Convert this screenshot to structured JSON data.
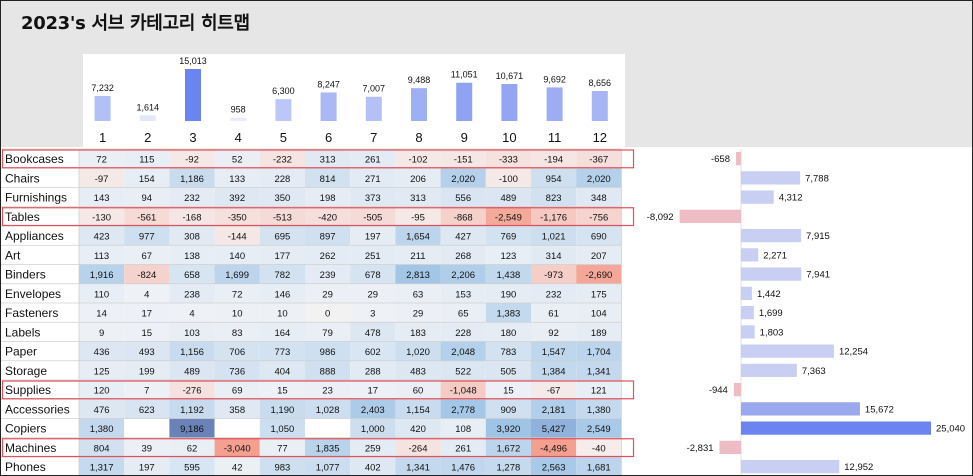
{
  "title": "2023's 서브 카테고리 히트맵",
  "colors": {
    "positive_strong": "#6b84f0",
    "positive_light": "#cdd6f8",
    "negative_strong": "#f07070",
    "heat_positive": "#9fc4e6",
    "heat_negative": "#f4a090",
    "total_positive": "#c9cff2",
    "total_negative": "#eebcc4",
    "highlight_border": "#e0505a"
  },
  "chart_data": {
    "type": "heatmap",
    "months": [
      "1",
      "2",
      "3",
      "4",
      "5",
      "6",
      "7",
      "8",
      "9",
      "10",
      "11",
      "12"
    ],
    "monthly_totals": [
      7232,
      1614,
      15013,
      958,
      6300,
      8247,
      7007,
      9488,
      11051,
      10671,
      9692,
      8656
    ],
    "monthly_labels": [
      "7,232",
      "1,614",
      "15,013",
      "958",
      "6,300",
      "8,247",
      "7,007",
      "9,488",
      "11,051",
      "10,671",
      "9,692",
      "8,656"
    ],
    "rows": [
      {
        "name": "Bookcases",
        "values": [
          72,
          115,
          -92,
          52,
          -232,
          313,
          261,
          -102,
          -151,
          -333,
          -194,
          -367
        ],
        "labels": [
          "72",
          "115",
          "-92",
          "52",
          "-232",
          "313",
          "261",
          "-102",
          "-151",
          "-333",
          "-194",
          "-367"
        ],
        "total": -658,
        "total_label": "-658",
        "highlight": true
      },
      {
        "name": "Chairs",
        "values": [
          -97,
          154,
          1186,
          133,
          228,
          814,
          271,
          206,
          2020,
          -100,
          954,
          2020
        ],
        "labels": [
          "-97",
          "154",
          "1,186",
          "133",
          "228",
          "814",
          "271",
          "206",
          "2,020",
          "-100",
          "954",
          "2,020"
        ],
        "total": 7788,
        "total_label": "7,788",
        "highlight": false
      },
      {
        "name": "Furnishings",
        "values": [
          143,
          94,
          232,
          392,
          350,
          198,
          373,
          313,
          556,
          489,
          823,
          348
        ],
        "labels": [
          "143",
          "94",
          "232",
          "392",
          "350",
          "198",
          "373",
          "313",
          "556",
          "489",
          "823",
          "348"
        ],
        "total": 4312,
        "total_label": "4,312",
        "highlight": false
      },
      {
        "name": "Tables",
        "values": [
          -130,
          -561,
          -168,
          -350,
          -513,
          -420,
          -505,
          -95,
          -868,
          -2549,
          -1176,
          -756
        ],
        "labels": [
          "-130",
          "-561",
          "-168",
          "-350",
          "-513",
          "-420",
          "-505",
          "-95",
          "-868",
          "-2,549",
          "-1,176",
          "-756"
        ],
        "total": -8092,
        "total_label": "-8,092",
        "highlight": true
      },
      {
        "name": "Appliances",
        "values": [
          423,
          977,
          308,
          -144,
          695,
          897,
          197,
          1654,
          427,
          769,
          1021,
          690
        ],
        "labels": [
          "423",
          "977",
          "308",
          "-144",
          "695",
          "897",
          "197",
          "1,654",
          "427",
          "769",
          "1,021",
          "690"
        ],
        "total": 7915,
        "total_label": "7,915",
        "highlight": false
      },
      {
        "name": "Art",
        "values": [
          113,
          67,
          138,
          140,
          177,
          262,
          251,
          211,
          268,
          123,
          314,
          207
        ],
        "labels": [
          "113",
          "67",
          "138",
          "140",
          "177",
          "262",
          "251",
          "211",
          "268",
          "123",
          "314",
          "207"
        ],
        "total": 2271,
        "total_label": "2,271",
        "highlight": false
      },
      {
        "name": "Binders",
        "values": [
          1916,
          -824,
          658,
          1699,
          782,
          239,
          678,
          2813,
          2206,
          1438,
          -973,
          -2690
        ],
        "labels": [
          "1,916",
          "-824",
          "658",
          "1,699",
          "782",
          "239",
          "678",
          "2,813",
          "2,206",
          "1,438",
          "-973",
          "-2,690"
        ],
        "total": 7941,
        "total_label": "7,941",
        "highlight": false
      },
      {
        "name": "Envelopes",
        "values": [
          110,
          4,
          238,
          72,
          146,
          29,
          29,
          63,
          153,
          190,
          232,
          175
        ],
        "labels": [
          "110",
          "4",
          "238",
          "72",
          "146",
          "29",
          "29",
          "63",
          "153",
          "190",
          "232",
          "175"
        ],
        "total": 1442,
        "total_label": "1,442",
        "highlight": false
      },
      {
        "name": "Fasteners",
        "values": [
          14,
          17,
          4,
          10,
          10,
          0,
          3,
          29,
          65,
          1383,
          61,
          104
        ],
        "labels": [
          "14",
          "17",
          "4",
          "10",
          "10",
          "0",
          "3",
          "29",
          "65",
          "1,383",
          "61",
          "104"
        ],
        "total": 1699,
        "total_label": "1,699",
        "highlight": false
      },
      {
        "name": "Labels",
        "values": [
          9,
          15,
          103,
          83,
          164,
          79,
          478,
          183,
          228,
          180,
          92,
          189
        ],
        "labels": [
          "9",
          "15",
          "103",
          "83",
          "164",
          "79",
          "478",
          "183",
          "228",
          "180",
          "92",
          "189"
        ],
        "total": 1803,
        "total_label": "1,803",
        "highlight": false
      },
      {
        "name": "Paper",
        "values": [
          436,
          493,
          1156,
          706,
          773,
          986,
          602,
          1020,
          2048,
          783,
          1547,
          1704
        ],
        "labels": [
          "436",
          "493",
          "1,156",
          "706",
          "773",
          "986",
          "602",
          "1,020",
          "2,048",
          "783",
          "1,547",
          "1,704"
        ],
        "total": 12254,
        "total_label": "12,254",
        "highlight": false
      },
      {
        "name": "Storage",
        "values": [
          125,
          199,
          489,
          736,
          404,
          888,
          288,
          483,
          522,
          505,
          1384,
          1341
        ],
        "labels": [
          "125",
          "199",
          "489",
          "736",
          "404",
          "888",
          "288",
          "483",
          "522",
          "505",
          "1,384",
          "1,341"
        ],
        "total": 7363,
        "total_label": "7,363",
        "highlight": false
      },
      {
        "name": "Supplies",
        "values": [
          120,
          7,
          -276,
          69,
          15,
          23,
          17,
          60,
          -1048,
          15,
          -67,
          121
        ],
        "labels": [
          "120",
          "7",
          "-276",
          "69",
          "15",
          "23",
          "17",
          "60",
          "-1,048",
          "15",
          "-67",
          "121"
        ],
        "total": -944,
        "total_label": "-944",
        "highlight": true
      },
      {
        "name": "Accessories",
        "values": [
          476,
          623,
          1192,
          358,
          1190,
          1028,
          2403,
          1154,
          2778,
          909,
          2181,
          1380
        ],
        "labels": [
          "476",
          "623",
          "1,192",
          "358",
          "1,190",
          "1,028",
          "2,403",
          "1,154",
          "2,778",
          "909",
          "2,181",
          "1,380"
        ],
        "total": 15672,
        "total_label": "15,672",
        "highlight": false
      },
      {
        "name": "Copiers",
        "values": [
          1380,
          null,
          9186,
          null,
          1050,
          null,
          1000,
          420,
          108,
          3920,
          5427,
          2549
        ],
        "labels": [
          "1,380",
          "",
          "9,186",
          "",
          "1,050",
          "",
          "1,000",
          "420",
          "108",
          "3,920",
          "5,427",
          "2,549"
        ],
        "total": 25040,
        "total_label": "25,040",
        "highlight": false
      },
      {
        "name": "Machines",
        "values": [
          804,
          39,
          62,
          -3040,
          77,
          1835,
          259,
          -264,
          261,
          1672,
          -4496,
          -40
        ],
        "labels": [
          "804",
          "39",
          "62",
          "-3,040",
          "77",
          "1,835",
          "259",
          "-264",
          "261",
          "1,672",
          "-4,496",
          "-40"
        ],
        "total": -2831,
        "total_label": "-2,831",
        "highlight": true
      },
      {
        "name": "Phones",
        "values": [
          1317,
          197,
          595,
          42,
          983,
          1077,
          402,
          1341,
          1476,
          1278,
          2563,
          1681
        ],
        "labels": [
          "1,317",
          "197",
          "595",
          "42",
          "983",
          "1,077",
          "402",
          "1,341",
          "1,476",
          "1,278",
          "2,563",
          "1,681"
        ],
        "total": 12952,
        "total_label": "12,952",
        "highlight": false
      }
    ]
  }
}
